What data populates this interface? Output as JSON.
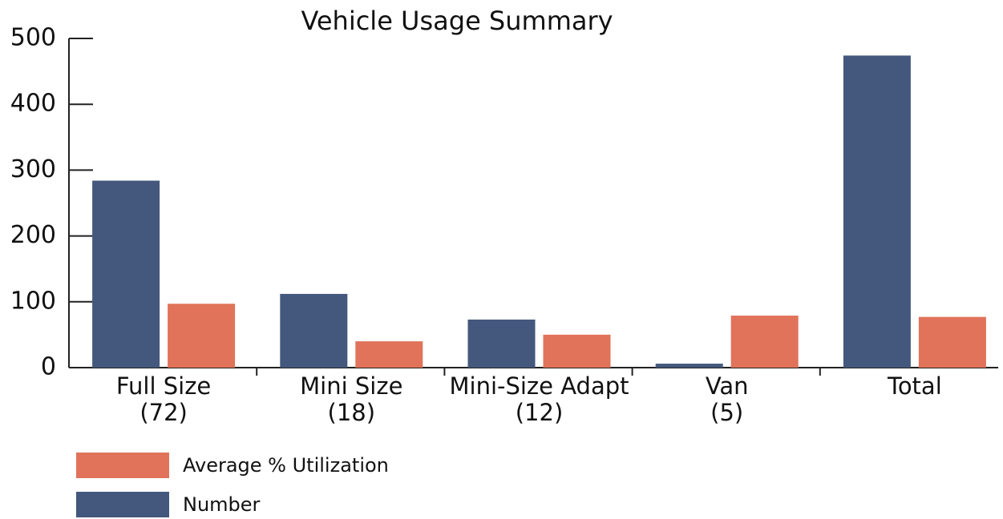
{
  "chart_data": {
    "type": "bar",
    "title": "Vehicle Usage Summary",
    "categories": [
      [
        "Full Size",
        "(72)"
      ],
      [
        "Mini Size",
        "(18)"
      ],
      [
        "Mini-Size Adapt",
        "(12)"
      ],
      [
        "Van",
        "(5)"
      ],
      [
        "Total"
      ]
    ],
    "series": [
      {
        "name": "Number",
        "color": "#43587c",
        "values": [
          284,
          112,
          73,
          6,
          474
        ]
      },
      {
        "name": "Average % Utilization",
        "color": "#e0735a",
        "values": [
          97,
          40,
          50,
          79,
          77
        ]
      }
    ],
    "ylim": [
      0,
      500
    ],
    "yticks": [
      0,
      100,
      200,
      300,
      400,
      500
    ],
    "grid": false
  }
}
